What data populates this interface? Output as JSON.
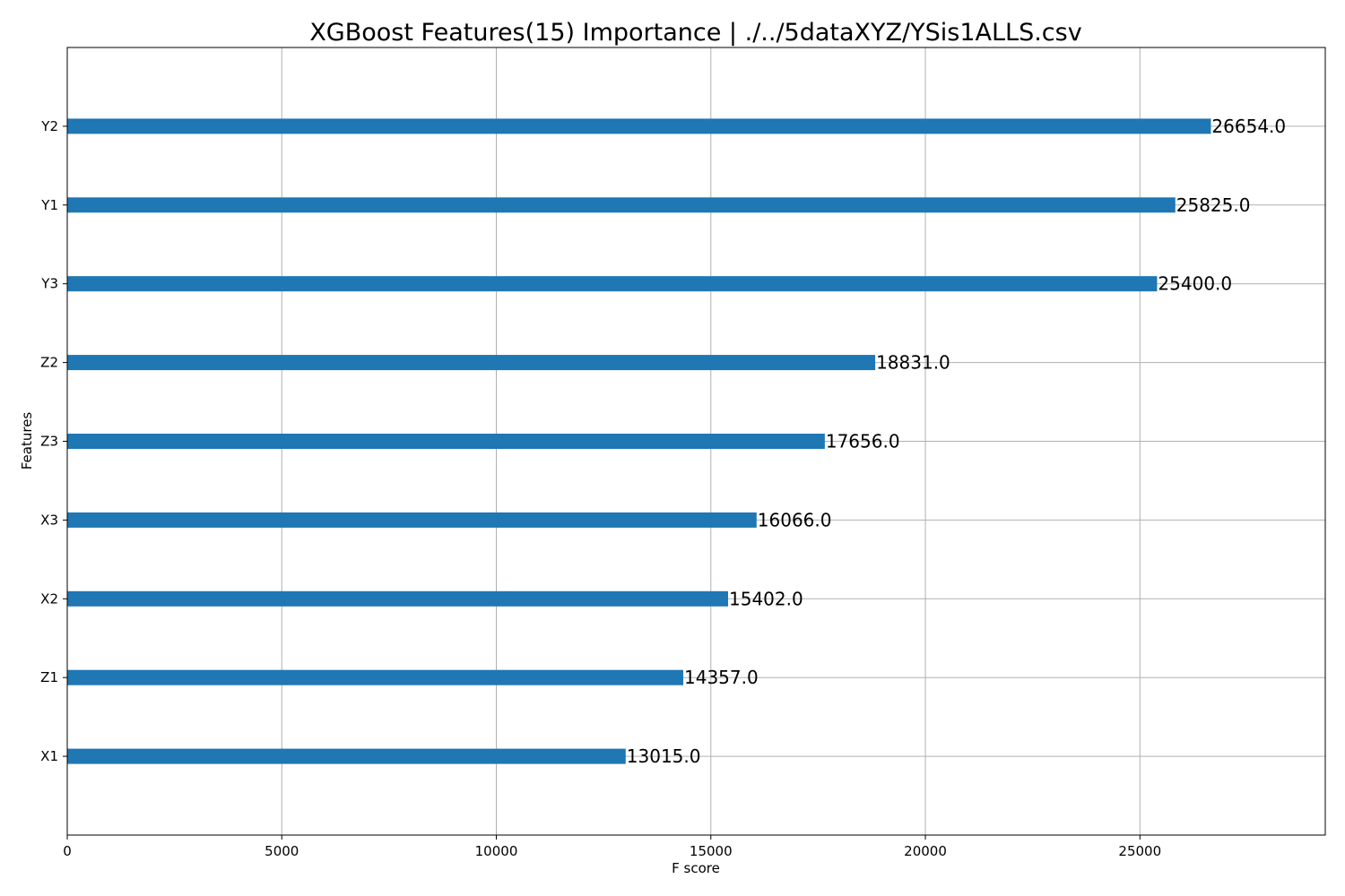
{
  "chart_data": {
    "type": "bar",
    "orientation": "horizontal",
    "title": "XGBoost Features(15) Importance | ./../5dataXYZ/YSis1ALLS.csv",
    "xlabel": "F score",
    "ylabel": "Features",
    "categories": [
      "Y2",
      "Y1",
      "Y3",
      "Z2",
      "Z3",
      "X3",
      "X2",
      "Z1",
      "X1"
    ],
    "values": [
      26654.0,
      25825.0,
      25400.0,
      18831.0,
      17656.0,
      16066.0,
      15402.0,
      14357.0,
      13015.0
    ],
    "value_labels": [
      "26654.0",
      "25825.0",
      "25400.0",
      "18831.0",
      "17656.0",
      "16066.0",
      "15402.0",
      "14357.0",
      "13015.0"
    ],
    "xlim": [
      0,
      29320
    ],
    "xticks": [
      0,
      5000,
      10000,
      15000,
      20000,
      25000
    ],
    "xtick_labels": [
      "0",
      "5000",
      "10000",
      "15000",
      "20000",
      "25000"
    ],
    "grid": true,
    "bar_color": "#1f77b4"
  }
}
